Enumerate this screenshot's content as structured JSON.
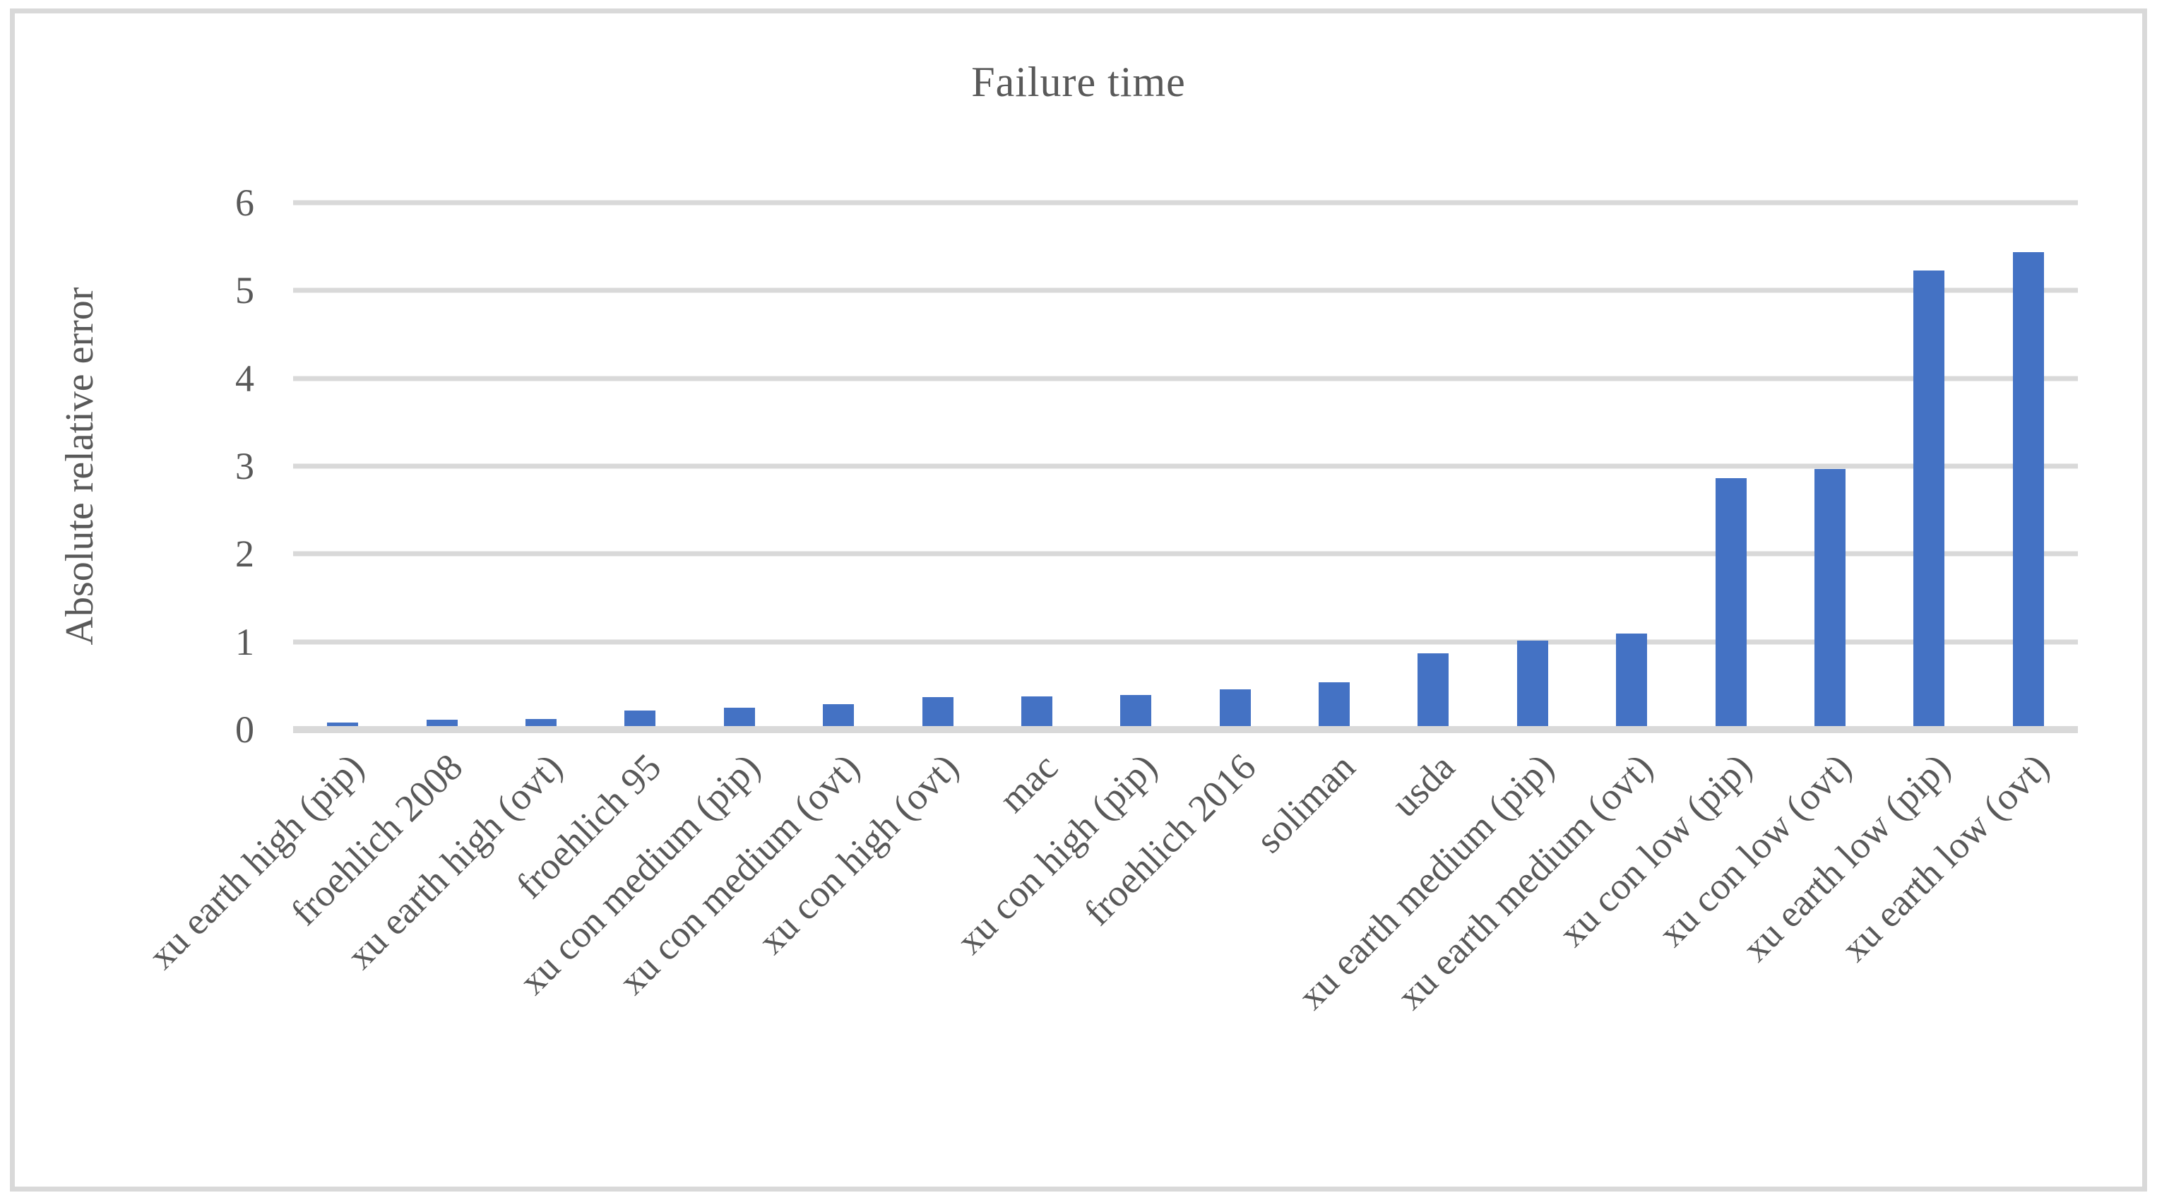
{
  "chart_data": {
    "type": "bar",
    "title": "Failure time",
    "ylabel": "Absolute relative error",
    "xlabel": "",
    "ylim": [
      0,
      6
    ],
    "yticks": [
      0,
      1,
      2,
      3,
      4,
      5,
      6
    ],
    "grid": "horizontal gridlines on",
    "legend_position": "none",
    "bar_color": "#4472C4",
    "gridline_color": "#D9D9D9",
    "text_color": "#595959",
    "categories": [
      "xu earth high (pip)",
      "froehlich 2008",
      "xu earth high (ovt)",
      "froehlich 95",
      "xu con medium (pip)",
      "xu con medium (ovt)",
      "xu con high (ovt)",
      "mac",
      "xu con high (pip)",
      "froehlich 2016",
      "soliman",
      "usda",
      "xu earth medium (pip)",
      "xu earth medium (ovt)",
      "xu con low (pip)",
      "xu con low (ovt)",
      "xu earth low (pip)",
      "xu earth low (ovt)"
    ],
    "values": [
      0.04,
      0.07,
      0.08,
      0.18,
      0.21,
      0.25,
      0.33,
      0.34,
      0.35,
      0.42,
      0.5,
      0.83,
      0.97,
      1.05,
      2.82,
      2.93,
      5.19,
      5.4
    ]
  }
}
